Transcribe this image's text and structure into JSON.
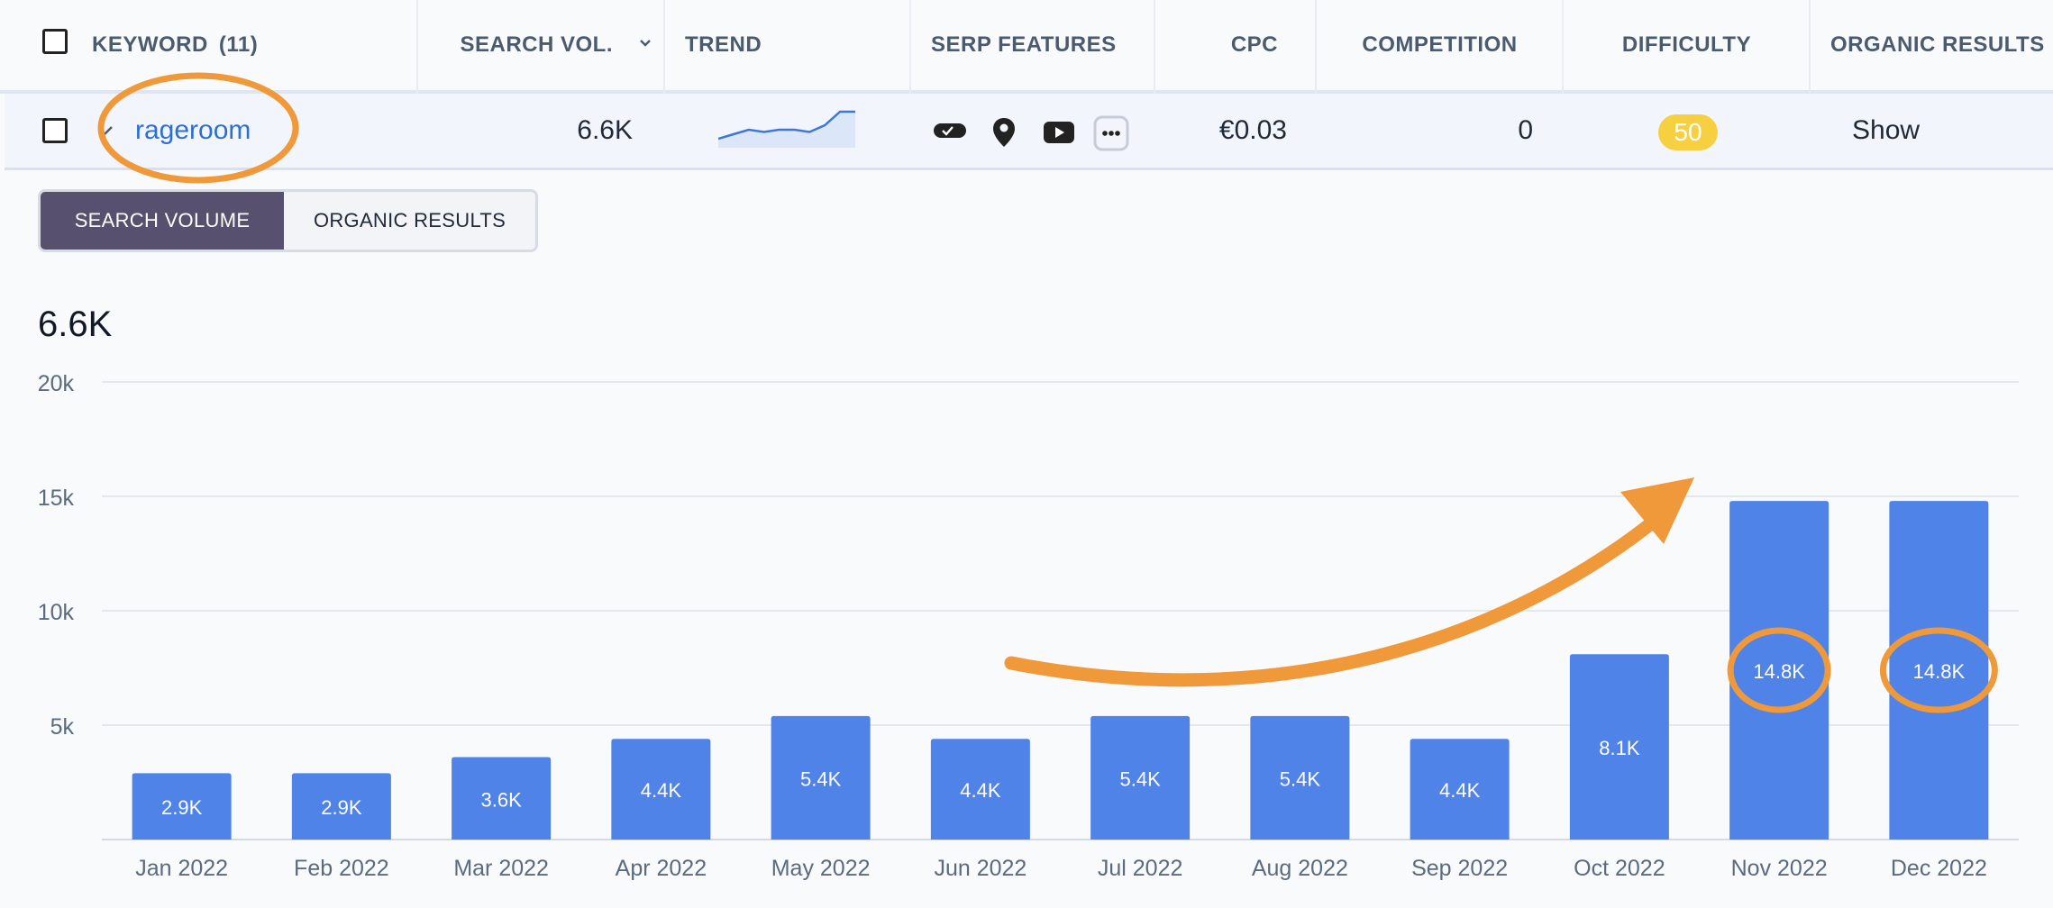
{
  "table": {
    "headers": {
      "keyword": "KEYWORD",
      "keyword_count": "(11)",
      "search_vol": "SEARCH VOL.",
      "trend": "TREND",
      "serp_features": "SERP FEATURES",
      "cpc": "CPC",
      "competition": "COMPETITION",
      "difficulty": "DIFFICULTY",
      "organic_results": "ORGANIC RESULTS"
    },
    "row": {
      "keyword": "rageroom",
      "search_vol": "6.6K",
      "trend_values": [
        2,
        3,
        4,
        3.5,
        4,
        4,
        3.5,
        5,
        8,
        8
      ],
      "serp_icons": [
        "review-stars-icon",
        "map-pin-icon",
        "video-play-icon",
        "more-features-icon"
      ],
      "cpc": "€0.03",
      "competition": "0",
      "difficulty": "50",
      "organic_results": "Show"
    }
  },
  "tabs": {
    "search_volume": "SEARCH VOLUME",
    "organic_results": "ORGANIC RESULTS"
  },
  "total": "6.6K",
  "colors": {
    "bar": "#5083e8",
    "accent": "#f0993a",
    "difficulty_badge": "#f6d040",
    "tab_active": "#57506e",
    "link": "#2f6fd1"
  },
  "chart_data": {
    "type": "bar",
    "categories": [
      "Jan 2022",
      "Feb 2022",
      "Mar 2022",
      "Apr 2022",
      "May 2022",
      "Jun 2022",
      "Jul 2022",
      "Aug 2022",
      "Sep 2022",
      "Oct 2022",
      "Nov 2022",
      "Dec 2022"
    ],
    "values": [
      2900,
      2900,
      3600,
      4400,
      5400,
      4400,
      5400,
      5400,
      4400,
      8100,
      14800,
      14800
    ],
    "data_labels": [
      "2.9K",
      "2.9K",
      "3.6K",
      "4.4K",
      "5.4K",
      "4.4K",
      "5.4K",
      "5.4K",
      "4.4K",
      "8.1K",
      "14.8K",
      "14.8K"
    ],
    "ylim": [
      0,
      20000
    ],
    "yticks": [
      5000,
      10000,
      15000,
      20000
    ],
    "ytick_labels": [
      "5k",
      "10k",
      "15k",
      "20k"
    ],
    "grid": true,
    "annotations": {
      "circled_categories": [
        "Nov 2022",
        "Dec 2022"
      ],
      "arrow": "upward-trend-arrow"
    }
  }
}
